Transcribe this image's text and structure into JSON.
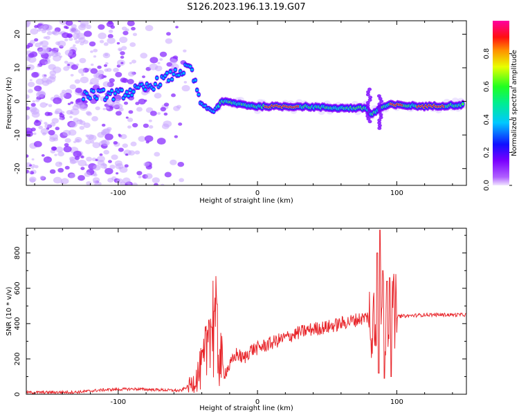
{
  "figure_title": "S126.2023.196.13.19.G07",
  "chart_data": [
    {
      "type": "heatmap",
      "xlabel": "Height of straight line (km)",
      "ylabel": "Frequency (Hz)",
      "xlim": [
        -166,
        150
      ],
      "ylim": [
        -25,
        24
      ],
      "x_ticks": [
        -100,
        0,
        100
      ],
      "y_ticks": [
        -20,
        -10,
        0,
        10,
        20
      ],
      "colorbar": {
        "label": "Normalized spectral amplitude",
        "range": [
          0,
          1
        ],
        "ticks": [
          "0.0",
          "0.2",
          "0.4",
          "0.6",
          "0.8"
        ],
        "colormap": [
          "#f0e6ff",
          "#9a00ff",
          "#1010ff",
          "#00ddee",
          "#00ff40",
          "#e8ff00",
          "#ff9000",
          "#ff1010",
          "#ff00a0"
        ]
      },
      "ridge": {
        "description_points": [
          [
            -120,
            2
          ],
          [
            -100,
            2
          ],
          [
            -80,
            4
          ],
          [
            -65,
            7
          ],
          [
            -55,
            9
          ],
          [
            -48,
            10
          ],
          [
            -44,
            4
          ],
          [
            -40,
            -1
          ],
          [
            -32,
            -3
          ],
          [
            -25,
            0
          ],
          [
            -10,
            -1
          ],
          [
            0,
            -1.5
          ],
          [
            30,
            -1.5
          ],
          [
            60,
            -2
          ],
          [
            78,
            -2
          ],
          [
            82,
            -4
          ],
          [
            88,
            -2
          ],
          [
            95,
            -1
          ],
          [
            120,
            -1.5
          ],
          [
            148,
            -1
          ]
        ],
        "peak_segments": [
          [
            5,
            30
          ],
          [
            95,
            105
          ],
          [
            115,
            135
          ]
        ]
      }
    },
    {
      "type": "line",
      "xlabel": "Height of straight line (km)",
      "ylabel": "SNR (10 * v/v)",
      "xlim": [
        -166,
        150
      ],
      "ylim": [
        0,
        940
      ],
      "x_ticks": [
        -100,
        0,
        100
      ],
      "y_ticks": [
        0,
        200,
        400,
        600,
        800
      ],
      "line_color": "#e8262b",
      "envelope": [
        [
          -166,
          10
        ],
        [
          -130,
          12
        ],
        [
          -110,
          25
        ],
        [
          -90,
          30
        ],
        [
          -70,
          25
        ],
        [
          -55,
          20
        ],
        [
          -47,
          60
        ],
        [
          -42,
          120
        ],
        [
          -38,
          180
        ],
        [
          -36,
          300
        ],
        [
          -33,
          420
        ],
        [
          -30,
          360
        ],
        [
          -27,
          220
        ],
        [
          -24,
          120
        ],
        [
          -20,
          160
        ],
        [
          -15,
          230
        ],
        [
          -10,
          200
        ],
        [
          -5,
          250
        ],
        [
          0,
          260
        ],
        [
          10,
          290
        ],
        [
          20,
          320
        ],
        [
          30,
          350
        ],
        [
          40,
          370
        ],
        [
          50,
          380
        ],
        [
          60,
          400
        ],
        [
          70,
          420
        ],
        [
          80,
          440
        ],
        [
          85,
          460
        ],
        [
          95,
          430
        ],
        [
          100,
          440
        ],
        [
          120,
          450
        ],
        [
          150,
          450
        ]
      ],
      "spikes": [
        [
          -29,
          510
        ],
        [
          -31,
          470
        ],
        [
          -35,
          420
        ],
        [
          -33,
          380
        ],
        [
          86,
          800
        ],
        [
          88,
          930
        ],
        [
          90,
          700
        ],
        [
          95,
          660
        ],
        [
          93,
          640
        ],
        [
          87,
          120
        ],
        [
          91,
          90
        ],
        [
          96,
          100
        ]
      ]
    }
  ]
}
